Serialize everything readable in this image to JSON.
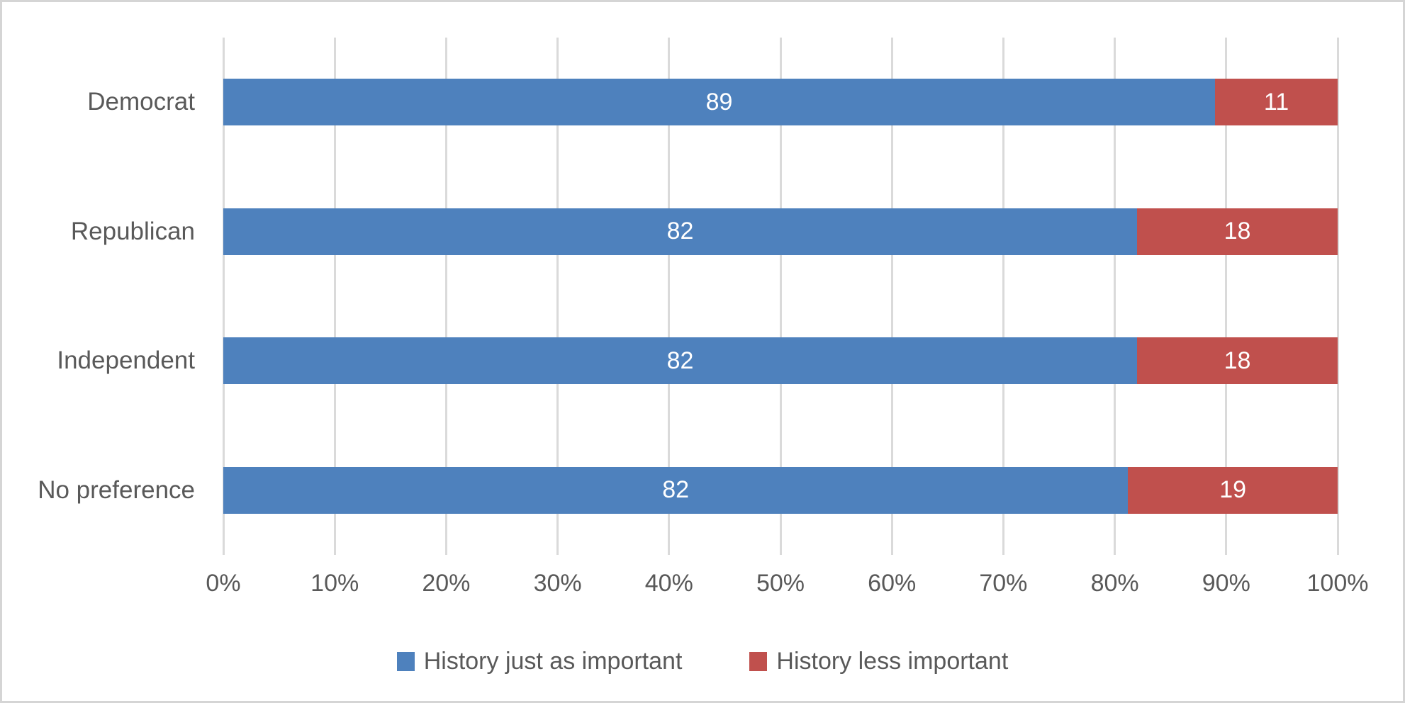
{
  "chart_data": {
    "type": "bar",
    "orientation": "horizontal",
    "stacked": true,
    "title": "",
    "xlabel": "",
    "ylabel": "",
    "categories": [
      "Democrat",
      "Republican",
      "Independent",
      "No preference"
    ],
    "series": [
      {
        "name": "History just as important",
        "color": "#4E81BD",
        "values": [
          89,
          82,
          82,
          82
        ]
      },
      {
        "name": "History less important",
        "color": "#C0504D",
        "values": [
          11,
          18,
          18,
          19
        ]
      }
    ],
    "x_axis": {
      "min": 0,
      "max": 100,
      "tick_step": 10,
      "ticks": [
        "0%",
        "10%",
        "20%",
        "30%",
        "40%",
        "50%",
        "60%",
        "70%",
        "80%",
        "90%",
        "100%"
      ]
    },
    "grid": "vertical-on",
    "gridline_color": "#DADADA",
    "value_labels": "inside-center",
    "value_label_color": "#FFFFFF",
    "axis_text_color": "#595959",
    "legend_position": "bottom",
    "background": "#FFFFFF"
  }
}
